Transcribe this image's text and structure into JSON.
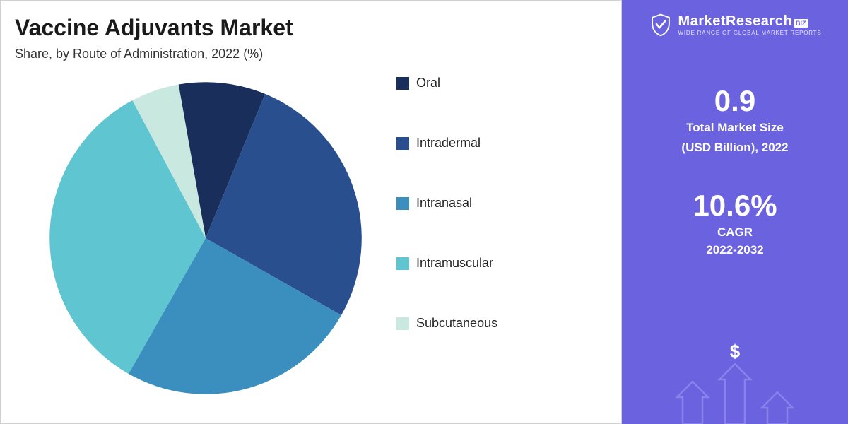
{
  "title": "Vaccine Adjuvants Market",
  "subtitle": "Share, by Route of Administration, 2022 (%)",
  "chart": {
    "type": "pie",
    "start_angle_deg": -10,
    "background_color": "#ffffff",
    "slices": [
      {
        "label": "Oral",
        "value": 9,
        "color": "#1a2e5c"
      },
      {
        "label": "Intradermal",
        "value": 27,
        "color": "#2a4f8f"
      },
      {
        "label": "Intranasal",
        "value": 25,
        "color": "#3b8fbf"
      },
      {
        "label": "Intramuscular",
        "value": 34,
        "color": "#5fc5d1"
      },
      {
        "label": "Subcutaneous",
        "value": 5,
        "color": "#c9e8df"
      }
    ],
    "legend_fontsize": 18,
    "legend_swatch_size": 18
  },
  "side": {
    "background_color": "#6b62e0",
    "text_color": "#ffffff",
    "brand_main": "MarketResearch",
    "brand_badge": "BIZ",
    "brand_tagline": "WIDE RANGE OF GLOBAL MARKET REPORTS",
    "stat1": {
      "value": "0.9",
      "label_line1": "Total Market Size",
      "label_line2": "(USD Billion), 2022"
    },
    "stat2": {
      "value": "10.6%",
      "label_line1": "CAGR",
      "label_line2": "2022-2032"
    },
    "arrow_color": "#8a82ea",
    "dollar_color": "#ffffff"
  }
}
